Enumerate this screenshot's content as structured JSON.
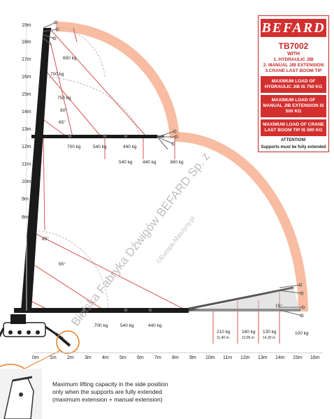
{
  "brand": {
    "logo": "BEFARD",
    "model": "TB7002",
    "with_label": "WITH",
    "features": [
      "1. HYDRAULIC JIB",
      "2. MANUAL JIB EXTENSION",
      "3.CRANE LAST BOOM TIP"
    ],
    "max_load_blocks": [
      "MAXIMUM LOAD OF HYDRAULIC JIB IS 750 KG",
      "MAXIMUM LOAD OF MANUAL JIB EXTENSION IS 500 KG",
      "MAXIMUM LOAD OF CRANE LAST BOOM TIP IS 500 KG"
    ],
    "attention_title": "ATTENTION!",
    "attention_text": "Supports must be fully extended"
  },
  "chart_data": {
    "type": "diagram",
    "y_axis_labels": [
      "19m",
      "18m",
      "17m",
      "16m",
      "15m",
      "14m",
      "13m",
      "12m",
      "11m",
      "10m",
      "9m",
      "8m"
    ],
    "x_axis_labels": [
      "0m",
      "1m",
      "2m",
      "3m",
      "4m",
      "5m",
      "6m",
      "7m",
      "8m",
      "9m",
      "10m",
      "11m",
      "12m",
      "13m",
      "14m",
      "15m",
      "16m"
    ],
    "upper_loads": [
      "650 kg",
      "700 kg",
      "750 kg",
      "540 kg",
      "440 kg",
      "700 kg"
    ],
    "upper_angles": [
      "90°",
      "65°"
    ],
    "mid_loads": [
      "540 kg",
      "440 kg",
      "360 kg"
    ],
    "lower_angles": [
      "85°",
      "65°",
      "15°"
    ],
    "base_loads": [
      ".700 kg",
      "540 kg",
      "440 kg",
      "210 kg",
      "160 kg",
      "130 kg",
      "100 kg"
    ],
    "base_sublabels": [
      "11,40 m",
      "12,85 m",
      "14,30 m"
    ]
  },
  "watermarks": [
    "Bielska Fabryka Dźwigów BEFARD Sp. z",
    "©Europa-Maszyny.pl"
  ],
  "note": {
    "lines": [
      "Maximum lifting capacity in the side position",
      "only when the supports are fully extended",
      "(maximum extension + manual extension)"
    ]
  }
}
